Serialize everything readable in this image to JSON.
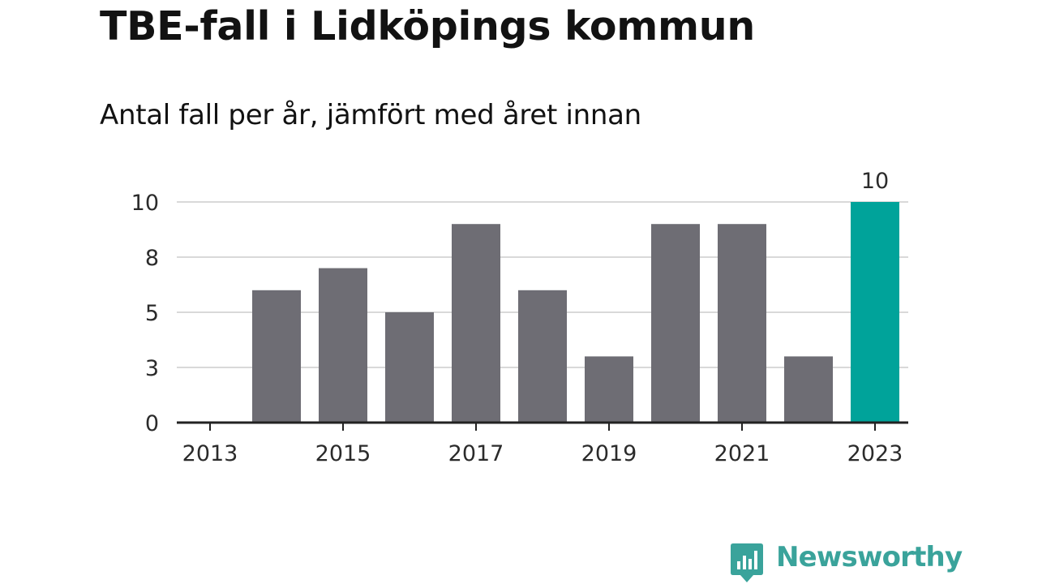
{
  "chart_data": {
    "type": "bar",
    "title": "TBE-fall i Lidköpings kommun",
    "subtitle": "Antal fall per år, jämfört med året innan",
    "categories": [
      "2013",
      "2014",
      "2015",
      "2016",
      "2017",
      "2018",
      "2019",
      "2020",
      "2021",
      "2022",
      "2023"
    ],
    "values": [
      0,
      6,
      7,
      5,
      9,
      6,
      3,
      9,
      9,
      3,
      10
    ],
    "x_tick_labels": [
      "2013",
      "2015",
      "2017",
      "2019",
      "2021",
      "2023"
    ],
    "y_ticks": [
      0,
      2.5,
      5,
      7.5,
      10
    ],
    "y_tick_labels": [
      "0",
      "3",
      "5",
      "8",
      "10"
    ],
    "ylim": [
      0,
      10
    ],
    "grid": true,
    "highlight_category": "2023",
    "highlight_label": "10",
    "colors": {
      "bar": "#6e6d74",
      "highlight": "#00a39a",
      "grid": "#d9d9d9",
      "axis": "#222222"
    }
  },
  "branding": {
    "name": "Newsworthy",
    "logo_icon": "bar-chart-speech-bubble-icon",
    "color": "#3aa39b"
  }
}
